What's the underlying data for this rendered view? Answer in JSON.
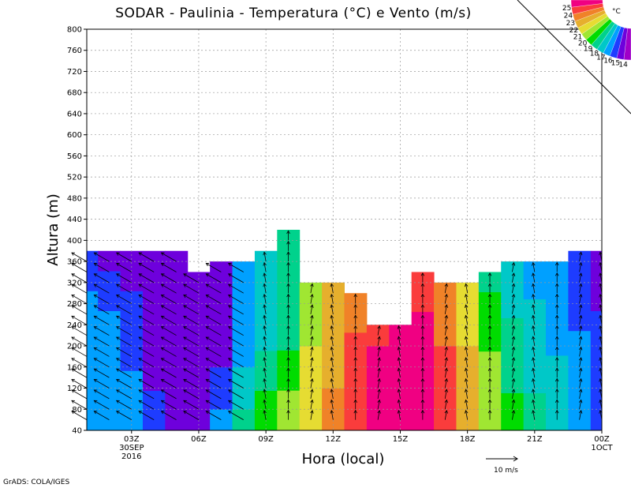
{
  "chart_data": {
    "type": "heatmap",
    "title": "SODAR - Paulinia - Temperatura (°C) e Vento (m/s)",
    "xlabel": "Hora (local)",
    "ylabel": "Altura (m)",
    "ylim": [
      40,
      800
    ],
    "yticks": [
      40,
      80,
      120,
      160,
      200,
      240,
      280,
      320,
      360,
      400,
      440,
      480,
      520,
      560,
      600,
      640,
      680,
      720,
      760,
      800
    ],
    "xlim": [
      1,
      24
    ],
    "xticks": [
      {
        "hour": 3,
        "label": "03Z",
        "sub1": "30SEP",
        "sub2": "2016"
      },
      {
        "hour": 6,
        "label": "06Z"
      },
      {
        "hour": 9,
        "label": "09Z"
      },
      {
        "hour": 12,
        "label": "12Z"
      },
      {
        "hour": 15,
        "label": "15Z"
      },
      {
        "hour": 18,
        "label": "18Z"
      },
      {
        "hour": 21,
        "label": "21Z"
      },
      {
        "hour": 24,
        "label": "00Z",
        "sub1": "1OCT"
      }
    ],
    "grid": true,
    "colorbar": {
      "unit": "°C",
      "levels": [
        14,
        15,
        16,
        17,
        18,
        19,
        20,
        21,
        22,
        23,
        24,
        25
      ],
      "colors": [
        "#a000c8",
        "#6e00dc",
        "#1e3cff",
        "#00a0ff",
        "#00c8c8",
        "#00d28c",
        "#00dc00",
        "#a0e632",
        "#e6dc32",
        "#e6af2d",
        "#f08228",
        "#fa3c3c",
        "#f00082"
      ]
    },
    "columns": [
      {
        "hour": 1,
        "top": 380,
        "temps": [
          16,
          16,
          16,
          16,
          16,
          16,
          16,
          15.5,
          15
        ]
      },
      {
        "hour": 2,
        "top": 380,
        "temps": [
          16.5,
          16.5,
          16.5,
          16,
          16,
          16,
          15.5,
          15,
          14.5
        ]
      },
      {
        "hour": 3,
        "top": 380,
        "temps": [
          16,
          16,
          16,
          15.5,
          15.5,
          15,
          15,
          14.5,
          14.5
        ]
      },
      {
        "hour": 4,
        "top": 380,
        "temps": [
          15,
          15,
          14.5,
          14.5,
          14.5,
          14.5,
          14.5,
          14.5,
          14.5
        ]
      },
      {
        "hour": 5,
        "top": 380,
        "temps": [
          14,
          14,
          14,
          14,
          14,
          14,
          14,
          14,
          14
        ]
      },
      {
        "hour": 6,
        "top": 340,
        "temps": [
          14,
          14,
          14,
          14,
          14,
          14,
          14,
          14
        ]
      },
      {
        "hour": 7,
        "top": 360,
        "temps": [
          16,
          15.5,
          15,
          14.5,
          14,
          14,
          14,
          14.5
        ]
      },
      {
        "hour": 8,
        "top": 360,
        "temps": [
          18,
          17.5,
          17,
          16.5,
          16,
          16,
          16,
          16
        ]
      },
      {
        "hour": 9,
        "top": 380,
        "temps": [
          19.5,
          19,
          18.5,
          18,
          17.5,
          17.5,
          17,
          17,
          17
        ]
      },
      {
        "hour": 10,
        "top": 420,
        "temps": [
          20.5,
          20,
          19.5,
          19,
          18.5,
          18.5,
          18,
          18,
          18,
          18
        ]
      },
      {
        "hour": 11,
        "top": 320,
        "temps": [
          21.5,
          21.5,
          21,
          21,
          20.5,
          20.5,
          20
        ]
      },
      {
        "hour": 12,
        "top": 320,
        "temps": [
          23,
          23,
          22.5,
          22.5,
          22,
          22,
          22
        ]
      },
      {
        "hour": 13,
        "top": 300,
        "temps": [
          24.5,
          24.5,
          24,
          24,
          24,
          23.5,
          23.5
        ]
      },
      {
        "hour": 14,
        "top": 240,
        "temps": [
          25,
          25.5,
          25.5,
          25,
          24.5
        ]
      },
      {
        "hour": 15,
        "top": 240,
        "temps": [
          25.5,
          25.5,
          25.5,
          25.5,
          25
        ]
      },
      {
        "hour": 16,
        "top": 340,
        "temps": [
          25.5,
          25.5,
          25.5,
          25.5,
          25.5,
          25,
          24.5,
          24.5
        ]
      },
      {
        "hour": 17,
        "top": 320,
        "temps": [
          24.5,
          24.5,
          24,
          24,
          23.5,
          23.5,
          23.5
        ]
      },
      {
        "hour": 18,
        "top": 320,
        "temps": [
          22.5,
          22.5,
          22,
          22,
          21.5,
          21.5,
          21
        ]
      },
      {
        "hour": 19,
        "top": 340,
        "temps": [
          20.5,
          20.5,
          20,
          20,
          19.5,
          19.5,
          19,
          18.5
        ]
      },
      {
        "hour": 20,
        "top": 360,
        "temps": [
          19,
          19,
          18.5,
          18.5,
          18,
          18,
          17.5,
          17.5,
          17
        ]
      },
      {
        "hour": 21,
        "top": 360,
        "temps": [
          18,
          18,
          17.5,
          17.5,
          17,
          17,
          17,
          16.5,
          16.5
        ]
      },
      {
        "hour": 22,
        "top": 360,
        "temps": [
          17.5,
          17.5,
          17,
          17,
          16.5,
          16.5,
          16,
          16,
          16
        ]
      },
      {
        "hour": 23,
        "top": 380,
        "temps": [
          16.5,
          16.5,
          16,
          16,
          16,
          15.5,
          15.5,
          15,
          15
        ]
      },
      {
        "hour": 24,
        "top": 380,
        "temps": [
          15.5,
          15.5,
          15.5,
          15,
          15,
          15,
          14.5,
          14.5,
          14
        ]
      }
    ],
    "wind_reference": {
      "speed": 10,
      "label": "10 m/s"
    }
  },
  "footer": {
    "credit": "GrADS: COLA/IGES"
  }
}
